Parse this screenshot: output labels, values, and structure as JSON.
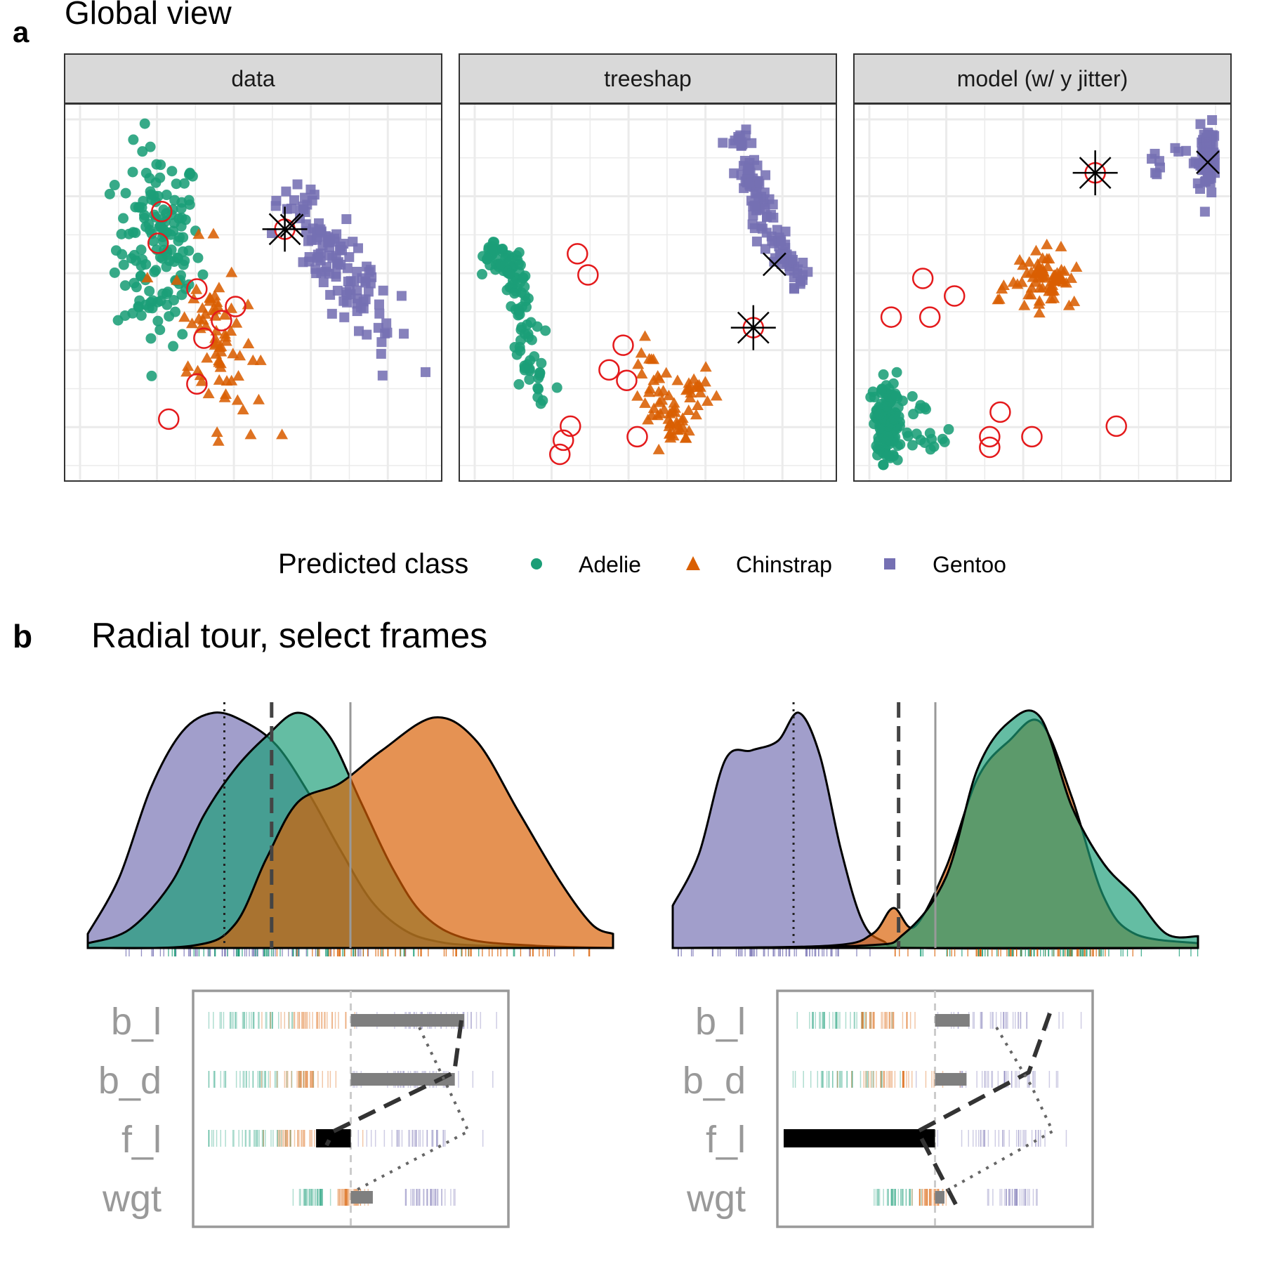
{
  "panel_a": {
    "label": "a",
    "title": "Global view",
    "facets": [
      "data",
      "treeshap",
      "model (w/ y jitter)"
    ]
  },
  "legend": {
    "title": "Predicted class",
    "items": [
      {
        "name": "Adelie",
        "color": "#1b9e77",
        "shape": "circle"
      },
      {
        "name": "Chinstrap",
        "color": "#d95f02",
        "shape": "triangle"
      },
      {
        "name": "Gentoo",
        "color": "#7570b3",
        "shape": "square"
      }
    ]
  },
  "panel_b": {
    "label": "b",
    "title": "Radial tour, select frames",
    "variables": [
      "b_l",
      "b_d",
      "f_l",
      "wgt"
    ]
  },
  "colors": {
    "adelie": "#1b9e77",
    "chinstrap": "#d95f02",
    "gentoo": "#7570b3",
    "misclassified": "#e41a1c",
    "grid": "#ebebeb",
    "strip": "#d9d9d9"
  },
  "chart_data": [
    {
      "type": "scatter",
      "facet": "data",
      "series": [
        {
          "name": "Adelie",
          "shape": "circle",
          "center": [
            0.22,
            0.62
          ],
          "spread": [
            0.08,
            0.18
          ],
          "n": 150
        },
        {
          "name": "Chinstrap",
          "shape": "triangle",
          "center": [
            0.39,
            0.36
          ],
          "spread": [
            0.06,
            0.14
          ],
          "n": 70
        },
        {
          "name": "Gentoo",
          "shape": "square",
          "center": [
            0.73,
            0.56
          ],
          "spread": [
            0.09,
            0.13
          ],
          "n": 120
        }
      ],
      "misclassified": [
        [
          0.24,
          0.73
        ],
        [
          0.23,
          0.64
        ],
        [
          0.34,
          0.51
        ],
        [
          0.45,
          0.46
        ],
        [
          0.41,
          0.42
        ],
        [
          0.36,
          0.37
        ],
        [
          0.34,
          0.24
        ],
        [
          0.26,
          0.14
        ]
      ],
      "highlight_asterisk": [
        0.59,
        0.68
      ],
      "highlight_x": [
        0.61,
        0.69
      ]
    },
    {
      "type": "scatter",
      "facet": "treeshap",
      "series": [
        {
          "name": "Adelie",
          "shape": "circle",
          "cluster_main": [
            0.1,
            0.6
          ],
          "n": 120
        },
        {
          "name": "Chinstrap",
          "shape": "triangle",
          "cluster_main": [
            0.55,
            0.12
          ],
          "n": 70
        },
        {
          "name": "Gentoo",
          "shape": "square",
          "cluster_main": [
            0.86,
            0.66
          ],
          "n": 110
        }
      ],
      "misclassified": [
        [
          0.3,
          0.61
        ],
        [
          0.33,
          0.55
        ],
        [
          0.43,
          0.35
        ],
        [
          0.39,
          0.28
        ],
        [
          0.44,
          0.25
        ],
        [
          0.28,
          0.12
        ],
        [
          0.26,
          0.08
        ],
        [
          0.25,
          0.04
        ],
        [
          0.47,
          0.09
        ]
      ],
      "highlight_asterisk": [
        0.8,
        0.4
      ],
      "highlight_x": [
        0.86,
        0.58
      ]
    },
    {
      "type": "scatter",
      "facet": "model (w/ y jitter)",
      "series": [
        {
          "name": "Adelie",
          "shape": "circle",
          "cluster_main": [
            0.06,
            0.12
          ],
          "n": 150
        },
        {
          "name": "Chinstrap",
          "shape": "triangle",
          "cluster_main": [
            0.5,
            0.52
          ],
          "n": 70
        },
        {
          "name": "Gentoo",
          "shape": "square",
          "cluster_main": [
            0.95,
            0.88
          ],
          "n": 120
        }
      ],
      "misclassified": [
        [
          0.16,
          0.54
        ],
        [
          0.07,
          0.43
        ],
        [
          0.18,
          0.43
        ],
        [
          0.25,
          0.49
        ],
        [
          0.38,
          0.16
        ],
        [
          0.35,
          0.09
        ],
        [
          0.35,
          0.06
        ],
        [
          0.47,
          0.09
        ],
        [
          0.71,
          0.12
        ]
      ],
      "highlight_asterisk": [
        0.65,
        0.84
      ],
      "highlight_x": [
        0.97,
        0.87
      ]
    },
    {
      "type": "area",
      "frame": 1,
      "series": [
        {
          "name": "Gentoo",
          "curve": [
            [
              0.0,
              0.06
            ],
            [
              0.06,
              0.3
            ],
            [
              0.12,
              0.68
            ],
            [
              0.18,
              0.92
            ],
            [
              0.24,
              1.0
            ],
            [
              0.3,
              0.96
            ],
            [
              0.36,
              0.86
            ],
            [
              0.42,
              0.66
            ],
            [
              0.48,
              0.42
            ],
            [
              0.54,
              0.2
            ],
            [
              0.6,
              0.08
            ],
            [
              0.66,
              0.03
            ],
            [
              0.75,
              0.01
            ],
            [
              1.0,
              0.0
            ]
          ]
        },
        {
          "name": "Adelie",
          "curve": [
            [
              0.0,
              0.02
            ],
            [
              0.08,
              0.08
            ],
            [
              0.16,
              0.28
            ],
            [
              0.22,
              0.56
            ],
            [
              0.28,
              0.76
            ],
            [
              0.34,
              0.9
            ],
            [
              0.4,
              1.0
            ],
            [
              0.46,
              0.9
            ],
            [
              0.52,
              0.62
            ],
            [
              0.58,
              0.34
            ],
            [
              0.64,
              0.14
            ],
            [
              0.72,
              0.04
            ],
            [
              0.85,
              0.01
            ],
            [
              1.0,
              0.0
            ]
          ]
        },
        {
          "name": "Chinstrap",
          "curve": [
            [
              0.0,
              0.0
            ],
            [
              0.2,
              0.01
            ],
            [
              0.28,
              0.1
            ],
            [
              0.34,
              0.38
            ],
            [
              0.4,
              0.62
            ],
            [
              0.48,
              0.7
            ],
            [
              0.56,
              0.84
            ],
            [
              0.66,
              0.98
            ],
            [
              0.74,
              0.88
            ],
            [
              0.82,
              0.58
            ],
            [
              0.9,
              0.28
            ],
            [
              0.96,
              0.1
            ],
            [
              1.0,
              0.06
            ]
          ]
        }
      ],
      "reference_lines": {
        "dotted": 0.26,
        "dashed": 0.35,
        "solid": 0.5
      },
      "basis": [
        {
          "variable": "b_l",
          "value": 0.36
        },
        {
          "variable": "b_d",
          "value": 0.33
        },
        {
          "variable": "f_l",
          "value": -0.11
        },
        {
          "variable": "wgt",
          "value": 0.07
        }
      ]
    },
    {
      "type": "area",
      "frame": 2,
      "series": [
        {
          "name": "Gentoo",
          "curve": [
            [
              0.0,
              0.18
            ],
            [
              0.05,
              0.4
            ],
            [
              0.1,
              0.8
            ],
            [
              0.15,
              0.84
            ],
            [
              0.2,
              0.88
            ],
            [
              0.24,
              1.0
            ],
            [
              0.28,
              0.82
            ],
            [
              0.32,
              0.42
            ],
            [
              0.36,
              0.12
            ],
            [
              0.4,
              0.03
            ],
            [
              0.48,
              0.0
            ],
            [
              1.0,
              0.0
            ]
          ]
        },
        {
          "name": "Chinstrap",
          "curve": [
            [
              0.0,
              0.0
            ],
            [
              0.3,
              0.01
            ],
            [
              0.38,
              0.06
            ],
            [
              0.42,
              0.17
            ],
            [
              0.46,
              0.09
            ],
            [
              0.52,
              0.34
            ],
            [
              0.58,
              0.72
            ],
            [
              0.64,
              0.88
            ],
            [
              0.7,
              0.96
            ],
            [
              0.76,
              0.64
            ],
            [
              0.82,
              0.22
            ],
            [
              0.88,
              0.06
            ],
            [
              1.0,
              0.02
            ]
          ]
        },
        {
          "name": "Adelie",
          "curve": [
            [
              0.0,
              0.0
            ],
            [
              0.36,
              0.01
            ],
            [
              0.44,
              0.06
            ],
            [
              0.52,
              0.3
            ],
            [
              0.58,
              0.76
            ],
            [
              0.64,
              0.96
            ],
            [
              0.7,
              0.98
            ],
            [
              0.76,
              0.6
            ],
            [
              0.82,
              0.36
            ],
            [
              0.88,
              0.22
            ],
            [
              0.94,
              0.06
            ],
            [
              1.0,
              0.05
            ]
          ]
        }
      ],
      "reference_lines": {
        "dotted": 0.23,
        "dashed": 0.43,
        "solid": 0.5
      },
      "basis": [
        {
          "variable": "b_l",
          "value": 0.11
        },
        {
          "variable": "b_d",
          "value": 0.1
        },
        {
          "variable": "f_l",
          "value": -0.48
        },
        {
          "variable": "wgt",
          "value": 0.03
        }
      ]
    }
  ]
}
